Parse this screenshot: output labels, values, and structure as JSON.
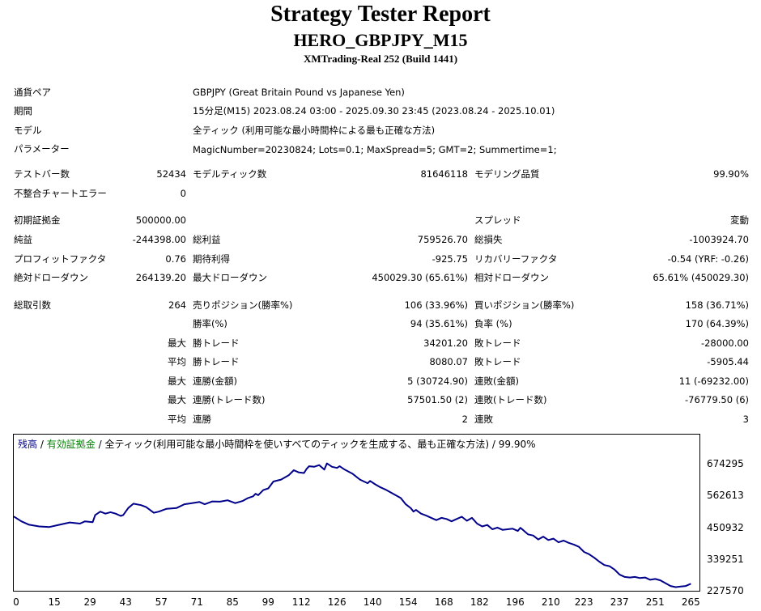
{
  "header": {
    "title": "Strategy Tester Report",
    "subtitle": "HERO_GBPJPY_M15",
    "server": "XMTrading-Real 252 (Build 1441)"
  },
  "info": {
    "symbol_label": "通貨ペア",
    "symbol_value": "GBPJPY (Great Britain Pound vs Japanese Yen)",
    "period_label": "期間",
    "period_value": "15分足(M15) 2023.08.24 03:00 - 2025.09.30 23:45 (2023.08.24 - 2025.10.01)",
    "model_label": "モデル",
    "model_value": "全ティック (利用可能な最小時間枠による最も正確な方法)",
    "params_label": "パラメーター",
    "params_value": "MagicNumber=20230824; Lots=0.1; MaxSpread=5; GMT=2; Summertime=1;"
  },
  "bars": {
    "bars_label": "テストバー数",
    "bars_value": "52434",
    "ticks_label": "モデルティック数",
    "ticks_value": "81646118",
    "quality_label": "モデリング品質",
    "quality_value": "99.90%",
    "errors_label": "不整合チャートエラー",
    "errors_value": "0"
  },
  "summary": {
    "deposit_label": "初期証拠金",
    "deposit_value": "500000.00",
    "spread_label": "スプレッド",
    "spread_value": "変動",
    "netprofit_label": "純益",
    "netprofit_value": "-244398.00",
    "grossprofit_label": "総利益",
    "grossprofit_value": "759526.70",
    "grossloss_label": "総損失",
    "grossloss_value": "-1003924.70",
    "pf_label": "プロフィットファクタ",
    "pf_value": "0.76",
    "expected_label": "期待利得",
    "expected_value": "-925.75",
    "recovery_label": "リカバリーファクタ",
    "recovery_value": "-0.54 (YRF: -0.26)",
    "absdd_label": "絶対ドローダウン",
    "absdd_value": "264139.20",
    "maxdd_label": "最大ドローダウン",
    "maxdd_value": "450029.30 (65.61%)",
    "reldd_label": "相対ドローダウン",
    "reldd_value": "65.61% (450029.30)"
  },
  "trades": {
    "total_label": "総取引数",
    "total_value": "264",
    "short_label": "売りポジション(勝率%)",
    "short_value": "106 (33.96%)",
    "long_label": "買いポジション(勝率%)",
    "long_value": "158 (36.71%)",
    "win_label": "勝率(%)",
    "win_value": "94 (35.61%)",
    "loss_label": "負率 (%)",
    "loss_value": "170 (64.39%)",
    "max_prefix": "最大",
    "avg_prefix": "平均",
    "largest_win_label": "勝トレード",
    "largest_win_value": "34201.20",
    "largest_loss_label": "敗トレード",
    "largest_loss_value": "-28000.00",
    "avg_win_label": "勝トレード",
    "avg_win_value": "8080.07",
    "avg_loss_label": "敗トレード",
    "avg_loss_value": "-5905.44",
    "cons_wins_amt_label": "連勝(金額)",
    "cons_wins_amt_value": "5 (30724.90)",
    "cons_loss_amt_label": "連敗(金額)",
    "cons_loss_amt_value": "11 (-69232.00)",
    "cons_wins_cnt_label": "連勝(トレード数)",
    "cons_wins_cnt_value": "57501.50 (2)",
    "cons_loss_cnt_label": "連敗(トレード数)",
    "cons_loss_cnt_value": "-76779.50 (6)",
    "avg_cons_win_label": "連勝",
    "avg_cons_win_value": "2",
    "avg_cons_loss_label": "連敗",
    "avg_cons_loss_value": "3"
  },
  "chart_data": {
    "type": "line",
    "legend_balance": "残高",
    "legend_equity": "有効証拠金",
    "legend_rest": "全ティック(利用可能な最小時間枠を使いすべてのティックを生成する、最も正確な方法)",
    "legend_quality": "99.90%",
    "sep": "/",
    "colors": {
      "balance": "#00008b",
      "equity": "#008000"
    },
    "y_ticks": [
      "674295",
      "562613",
      "450932",
      "339251",
      "227570"
    ],
    "y_tick_values": [
      674295,
      562613,
      450932,
      339251,
      227570
    ],
    "x_ticks": [
      "0",
      "15",
      "29",
      "43",
      "57",
      "71",
      "85",
      "99",
      "112",
      "126",
      "140",
      "154",
      "168",
      "182",
      "196",
      "210",
      "223",
      "237",
      "251",
      "265"
    ],
    "x_tick_values": [
      0,
      15,
      29,
      43,
      57,
      71,
      85,
      99,
      112,
      126,
      140,
      154,
      168,
      182,
      196,
      210,
      223,
      237,
      251,
      265
    ],
    "xlim": [
      0,
      270
    ],
    "ylim": [
      227570,
      735000
    ],
    "series": [
      {
        "name": "残高",
        "x": [
          0,
          3,
          6,
          10,
          14,
          18,
          22,
          26,
          28,
          31,
          32,
          34,
          36,
          38,
          40,
          42,
          43,
          45,
          47,
          50,
          52,
          55,
          57,
          60,
          64,
          67,
          70,
          73,
          75,
          78,
          81,
          84,
          87,
          90,
          92,
          94,
          95,
          96,
          98,
          100,
          102,
          105,
          108,
          110,
          112,
          114,
          115,
          116,
          118,
          120,
          122,
          123,
          125,
          127,
          128,
          130,
          133,
          136,
          139,
          140,
          142,
          144,
          146,
          148,
          150,
          152,
          154,
          156,
          157,
          158,
          160,
          162,
          164,
          166,
          168,
          170,
          172,
          174,
          176,
          178,
          180,
          182,
          184,
          186,
          188,
          190,
          192,
          194,
          196,
          198,
          199,
          200,
          202,
          204,
          206,
          208,
          210,
          212,
          214,
          216,
          218,
          220,
          222,
          224,
          226,
          228,
          230,
          232,
          234,
          236,
          238,
          240,
          242,
          244,
          246,
          248,
          250,
          252,
          254,
          256,
          258,
          260,
          262,
          264,
          266
        ],
        "values": [
          495000,
          478000,
          466000,
          460000,
          458000,
          466000,
          474000,
          470000,
          478000,
          475000,
          500000,
          512000,
          505000,
          510000,
          505000,
          497000,
          500000,
          525000,
          540000,
          535000,
          528000,
          508000,
          512000,
          522000,
          525000,
          538000,
          542000,
          546000,
          538000,
          548000,
          547000,
          552000,
          542000,
          550000,
          560000,
          566000,
          575000,
          570000,
          588000,
          594000,
          618000,
          625000,
          640000,
          658000,
          650000,
          648000,
          662000,
          672000,
          670000,
          676000,
          660000,
          682000,
          670000,
          666000,
          672000,
          660000,
          646000,
          625000,
          612000,
          620000,
          608000,
          598000,
          590000,
          580000,
          570000,
          560000,
          538000,
          524000,
          512000,
          518000,
          505000,
          498000,
          490000,
          482000,
          490000,
          486000,
          478000,
          486000,
          494000,
          480000,
          490000,
          470000,
          460000,
          465000,
          450000,
          456000,
          448000,
          450000,
          452000,
          444000,
          455000,
          448000,
          432000,
          428000,
          414000,
          424000,
          412000,
          417000,
          404000,
          410000,
          402000,
          396000,
          388000,
          370000,
          362000,
          350000,
          336000,
          324000,
          320000,
          308000,
          290000,
          282000,
          280000,
          282000,
          278000,
          280000,
          272000,
          275000,
          270000,
          260000,
          250000,
          246000,
          248000,
          250000,
          258000
        ]
      }
    ]
  }
}
